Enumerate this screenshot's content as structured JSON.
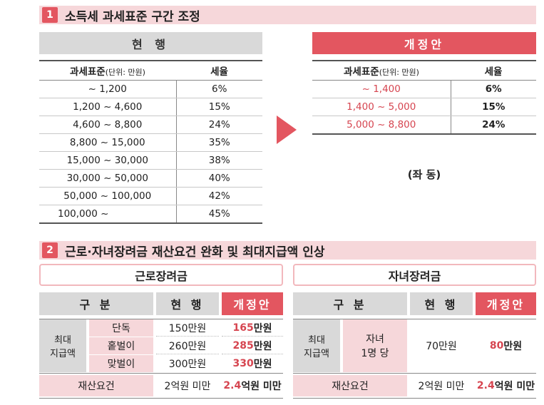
{
  "section1": {
    "number": "1",
    "title": "소득세 과세표준 구간 조정",
    "current_header": "현 행",
    "proposed_header": "개정안",
    "col_bracket": "과세표준",
    "col_unit": "(단위: 만원)",
    "col_rate": "세율",
    "current_rows": [
      {
        "bracket": "~ 1,200",
        "rate": "6%"
      },
      {
        "bracket": "1,200 ~ 4,600",
        "rate": "15%"
      },
      {
        "bracket": "4,600 ~ 8,800",
        "rate": "24%"
      },
      {
        "bracket": "8,800 ~ 15,000",
        "rate": "35%"
      },
      {
        "bracket": "15,000 ~ 30,000",
        "rate": "38%"
      },
      {
        "bracket": "30,000 ~ 50,000",
        "rate": "40%"
      },
      {
        "bracket": "50,000 ~ 100,000",
        "rate": "42%"
      },
      {
        "bracket": "100,000 ~",
        "rate": "45%"
      }
    ],
    "proposed_rows": [
      {
        "bracket": "~ 1,400",
        "rate": "6%"
      },
      {
        "bracket": "1,400 ~ 5,000",
        "rate": "15%"
      },
      {
        "bracket": "5,000 ~ 8,800",
        "rate": "24%"
      }
    ],
    "same_note": "(좌 동)"
  },
  "section2": {
    "number": "2",
    "title": "근로·자녀장려금 재산요건 완화 및 최대지급액 인상",
    "earned": {
      "title": "근로장려금",
      "h_category": "구 분",
      "h_current": "현 행",
      "h_proposed": "개정안",
      "max_label_1": "최대",
      "max_label_2": "지급액",
      "rows": [
        {
          "type": "단독",
          "current": "150만원",
          "proposed_num": "165",
          "proposed_unit": "만원"
        },
        {
          "type": "홑벌이",
          "current": "260만원",
          "proposed_num": "285",
          "proposed_unit": "만원"
        },
        {
          "type": "맞벌이",
          "current": "300만원",
          "proposed_num": "330",
          "proposed_unit": "만원"
        }
      ],
      "asset_label": "재산요건",
      "asset_current": "2억원 미만",
      "asset_proposed_num": "2.4",
      "asset_proposed_unit": "억원 미만"
    },
    "child": {
      "title": "자녀장려금",
      "h_category": "구 분",
      "h_current": "현 행",
      "h_proposed": "개정안",
      "max_label_1": "최대",
      "max_label_2": "지급액",
      "type_1": "자녀",
      "type_2": "1명 당",
      "current": "70만원",
      "proposed_num": "80",
      "proposed_unit": "만원",
      "asset_label": "재산요건",
      "asset_current": "2억원 미만",
      "asset_proposed_num": "2.4",
      "asset_proposed_unit": "억원 미만"
    }
  },
  "colors": {
    "accent": "#e35660",
    "pink": "#f6d7da",
    "gray": "#d9d9d9"
  }
}
